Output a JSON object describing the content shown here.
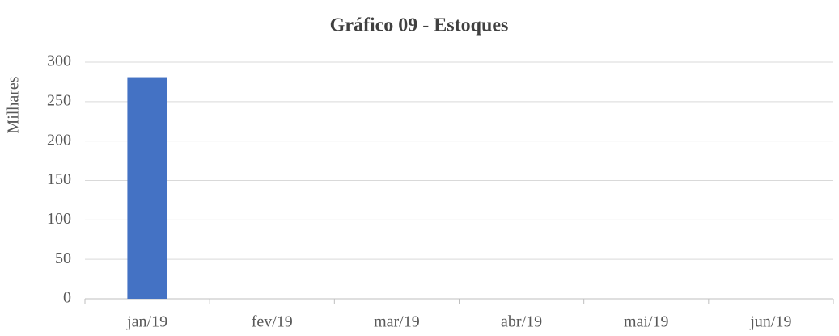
{
  "chart_data": {
    "type": "bar",
    "title": "Gráfico 09 - Estoques",
    "y_label": "Milhares",
    "categories": [
      "jan/19",
      "fev/19",
      "mar/19",
      "abr/19",
      "mai/19",
      "jun/19"
    ],
    "values": [
      281,
      0,
      0,
      0,
      0,
      0
    ],
    "color": "#4472c4",
    "ylim": [
      0,
      300
    ],
    "yticks": [
      0,
      50,
      100,
      150,
      200,
      250,
      300
    ],
    "grid": true
  }
}
